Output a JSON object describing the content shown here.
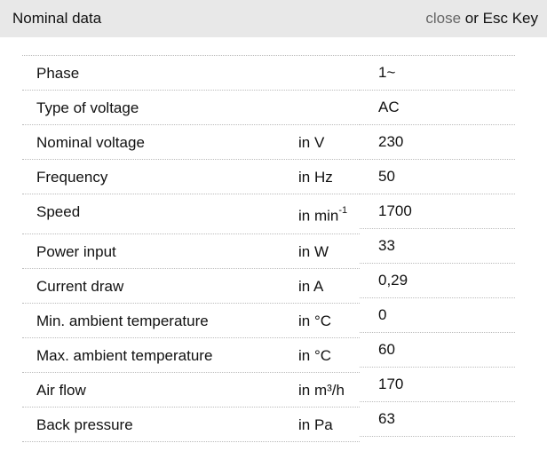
{
  "header": {
    "title": "Nominal data",
    "close_label": "close",
    "close_suffix": " or Esc Key"
  },
  "rows": [
    {
      "label": "Phase",
      "unit": "",
      "value": "1~"
    },
    {
      "label": "Type of voltage",
      "unit": "",
      "value": "AC"
    },
    {
      "label": "Nominal voltage",
      "unit": "in V",
      "value": "230"
    },
    {
      "label": "Frequency",
      "unit": "in Hz",
      "value": "50"
    },
    {
      "label": "Speed",
      "unit": "in min",
      "unit_sup": "-1",
      "value": "1700"
    },
    {
      "label": "Power input",
      "unit": "in W",
      "value": "33"
    },
    {
      "label": "Current draw",
      "unit": "in A",
      "value": "0,29"
    },
    {
      "label": "Min. ambient temperature",
      "unit": "in °C",
      "value": "0"
    },
    {
      "label": "Max. ambient temperature",
      "unit": "in °C",
      "value": "60"
    },
    {
      "label": "Air flow",
      "unit": "in m³/h",
      "value": "170"
    },
    {
      "label": "Back pressure",
      "unit": "in Pa",
      "value": "63"
    }
  ]
}
